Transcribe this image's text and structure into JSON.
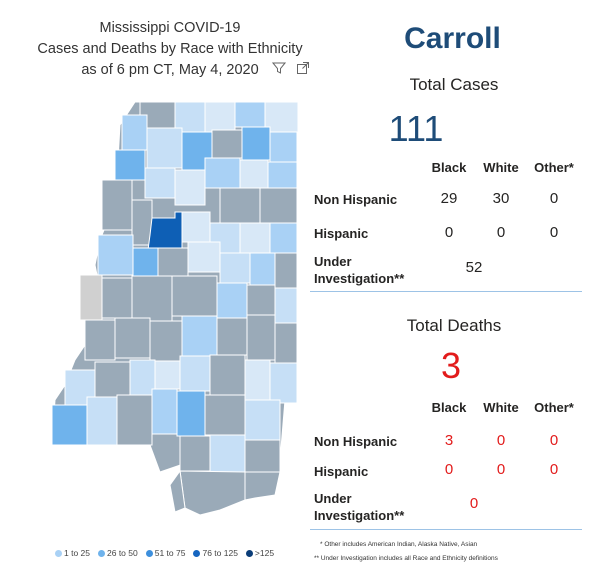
{
  "header": {
    "title_line1": "Mississippi COVID-19",
    "title_line2": "Cases and Deaths by Race with Ethnicity",
    "title_line3": "as of 6 pm CT, May 4, 2020"
  },
  "county_name": "Carroll",
  "cases": {
    "title": "Total Cases",
    "total": "111",
    "columns": [
      "Black",
      "White",
      "Other*"
    ],
    "rows": [
      {
        "label": "Non Hispanic",
        "values": [
          "29",
          "30",
          "0"
        ]
      },
      {
        "label": "Hispanic",
        "values": [
          "0",
          "0",
          "0"
        ]
      }
    ],
    "under_investigation": {
      "label_line1": "Under",
      "label_line2": "Investigation**",
      "value": "52"
    }
  },
  "deaths": {
    "title": "Total Deaths",
    "total": "3",
    "columns": [
      "Black",
      "White",
      "Other*"
    ],
    "rows": [
      {
        "label": "Non Hispanic",
        "values": [
          "3",
          "0",
          "0"
        ]
      },
      {
        "label": "Hispanic",
        "values": [
          "0",
          "0",
          "0"
        ]
      }
    ],
    "under_investigation": {
      "label_line1": "Under",
      "label_line2": "Investigation**",
      "value": "0"
    }
  },
  "footnotes": {
    "note1": "* Other includes American Indian, Alaska Native, Asian",
    "note2": "** Under Investigation includes all Race and Ethnicity definitions"
  },
  "legend": [
    {
      "label": "1 to 25",
      "color": "#a9d1f5"
    },
    {
      "label": "26 to 50",
      "color": "#6fb3ec"
    },
    {
      "label": "51 to 75",
      "color": "#3d8fdc"
    },
    {
      "label": "76 to 125",
      "color": "#1565c0"
    },
    {
      "label": ">125",
      "color": "#0b3d78"
    }
  ],
  "colors": {
    "accent": "#1e4c78",
    "deaths": "#e21b1b",
    "map_gray": "#9aaab8",
    "selected_county": "#0e5fb5"
  },
  "icons": [
    "filter-icon",
    "focus-mode-icon"
  ]
}
